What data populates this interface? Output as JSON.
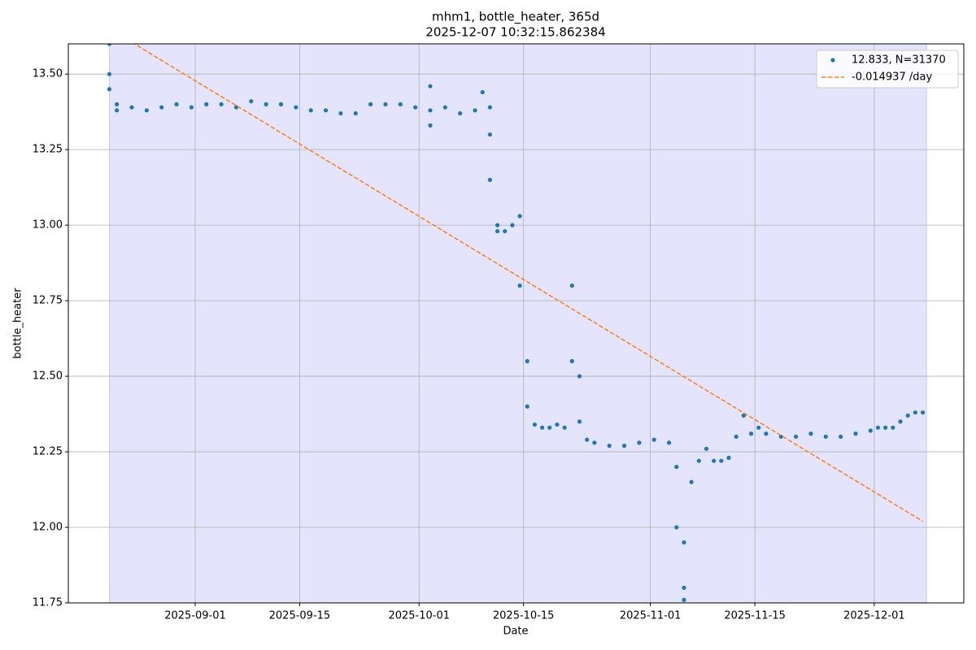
{
  "chart_data": {
    "type": "scatter",
    "title": [
      "mhm1, bottle_heater, 365d",
      "2025-12-07 10:32:15.862384"
    ],
    "x_label": "Date",
    "y_label": "bottle_heater",
    "xlim": [
      "2025-08-15",
      "2025-12-13"
    ],
    "ylim": [
      11.75,
      13.6
    ],
    "xticks": [
      "2025-09-01",
      "2025-09-15",
      "2025-10-01",
      "2025-10-15",
      "2025-11-01",
      "2025-11-15",
      "2025-12-01"
    ],
    "yticks": [
      11.75,
      {
        "value": 12.0,
        "label": "12.00"
      },
      12.25,
      {
        "value": 12.5,
        "label": "12.50"
      },
      12.75,
      {
        "value": 13.0,
        "label": "13.00"
      },
      13.25,
      {
        "value": 13.5,
        "label": "13.50"
      }
    ],
    "grid": true,
    "legend": "upper right",
    "span": [
      "2025-08-20",
      "2025-12-07"
    ],
    "span_color": "#e4e4fc",
    "series": [
      {
        "name": "12.833, N=31370",
        "color": "#1f77b4",
        "type": "scatter",
        "x": [
          "2025-08-20",
          "2025-08-20",
          "2025-08-20",
          "2025-08-21",
          "2025-08-21",
          "2025-08-23",
          "2025-08-25",
          "2025-08-27",
          "2025-08-29",
          "2025-08-31",
          "2025-09-02",
          "2025-09-04",
          "2025-09-06",
          "2025-09-08",
          "2025-09-10",
          "2025-09-12",
          "2025-09-14",
          "2025-09-16",
          "2025-09-18",
          "2025-09-20",
          "2025-09-22",
          "2025-09-24",
          "2025-09-26",
          "2025-09-28",
          "2025-09-30",
          "2025-10-02",
          "2025-10-02",
          "2025-10-02",
          "2025-10-04",
          "2025-10-06",
          "2025-10-08",
          "2025-10-09",
          "2025-10-10",
          "2025-10-10",
          "2025-10-10",
          "2025-10-11",
          "2025-10-11",
          "2025-10-12",
          "2025-10-13",
          "2025-10-14",
          "2025-10-14",
          "2025-10-15",
          "2025-10-15",
          "2025-10-16",
          "2025-10-17",
          "2025-10-18",
          "2025-10-19",
          "2025-10-20",
          "2025-10-21",
          "2025-10-21",
          "2025-10-22",
          "2025-10-22",
          "2025-10-23",
          "2025-10-24",
          "2025-10-26",
          "2025-10-28",
          "2025-10-30",
          "2025-11-01",
          "2025-11-03",
          "2025-11-04",
          "2025-11-04",
          "2025-11-05",
          "2025-11-05",
          "2025-11-05",
          "2025-11-06",
          "2025-11-07",
          "2025-11-08",
          "2025-11-09",
          "2025-11-10",
          "2025-11-11",
          "2025-11-12",
          "2025-11-13",
          "2025-11-14",
          "2025-11-15",
          "2025-11-16",
          "2025-11-18",
          "2025-11-20",
          "2025-11-22",
          "2025-11-24",
          "2025-11-26",
          "2025-11-28",
          "2025-11-30",
          "2025-12-01",
          "2025-12-02",
          "2025-12-03",
          "2025-12-04",
          "2025-12-05",
          "2025-12-06",
          "2025-12-07"
        ],
        "values": [
          13.6,
          13.5,
          13.45,
          13.4,
          13.38,
          13.39,
          13.38,
          13.39,
          13.4,
          13.39,
          13.4,
          13.4,
          13.39,
          13.41,
          13.4,
          13.4,
          13.39,
          13.38,
          13.38,
          13.37,
          13.37,
          13.4,
          13.4,
          13.4,
          13.39,
          13.38,
          13.46,
          13.33,
          13.39,
          13.37,
          13.38,
          13.44,
          13.39,
          13.3,
          13.15,
          13.0,
          12.98,
          12.98,
          13.0,
          13.03,
          12.8,
          12.55,
          12.4,
          12.34,
          12.33,
          12.33,
          12.34,
          12.33,
          12.55,
          12.8,
          12.5,
          12.35,
          12.29,
          12.28,
          12.27,
          12.27,
          12.28,
          12.29,
          12.28,
          12.2,
          12.0,
          11.8,
          11.76,
          11.95,
          12.15,
          12.22,
          12.26,
          12.22,
          12.22,
          12.23,
          12.3,
          12.37,
          12.31,
          12.33,
          12.31,
          12.3,
          12.3,
          12.31,
          12.3,
          12.3,
          12.31,
          12.32,
          12.33,
          12.33,
          12.33,
          12.35,
          12.37,
          12.38,
          12.38
        ]
      },
      {
        "name": "-0.014937 /day",
        "color": "#ff7f0e",
        "type": "line",
        "dashed": true,
        "x": [
          "2025-08-20",
          "2025-12-07"
        ],
        "values": [
          13.65,
          12.02
        ]
      }
    ]
  }
}
